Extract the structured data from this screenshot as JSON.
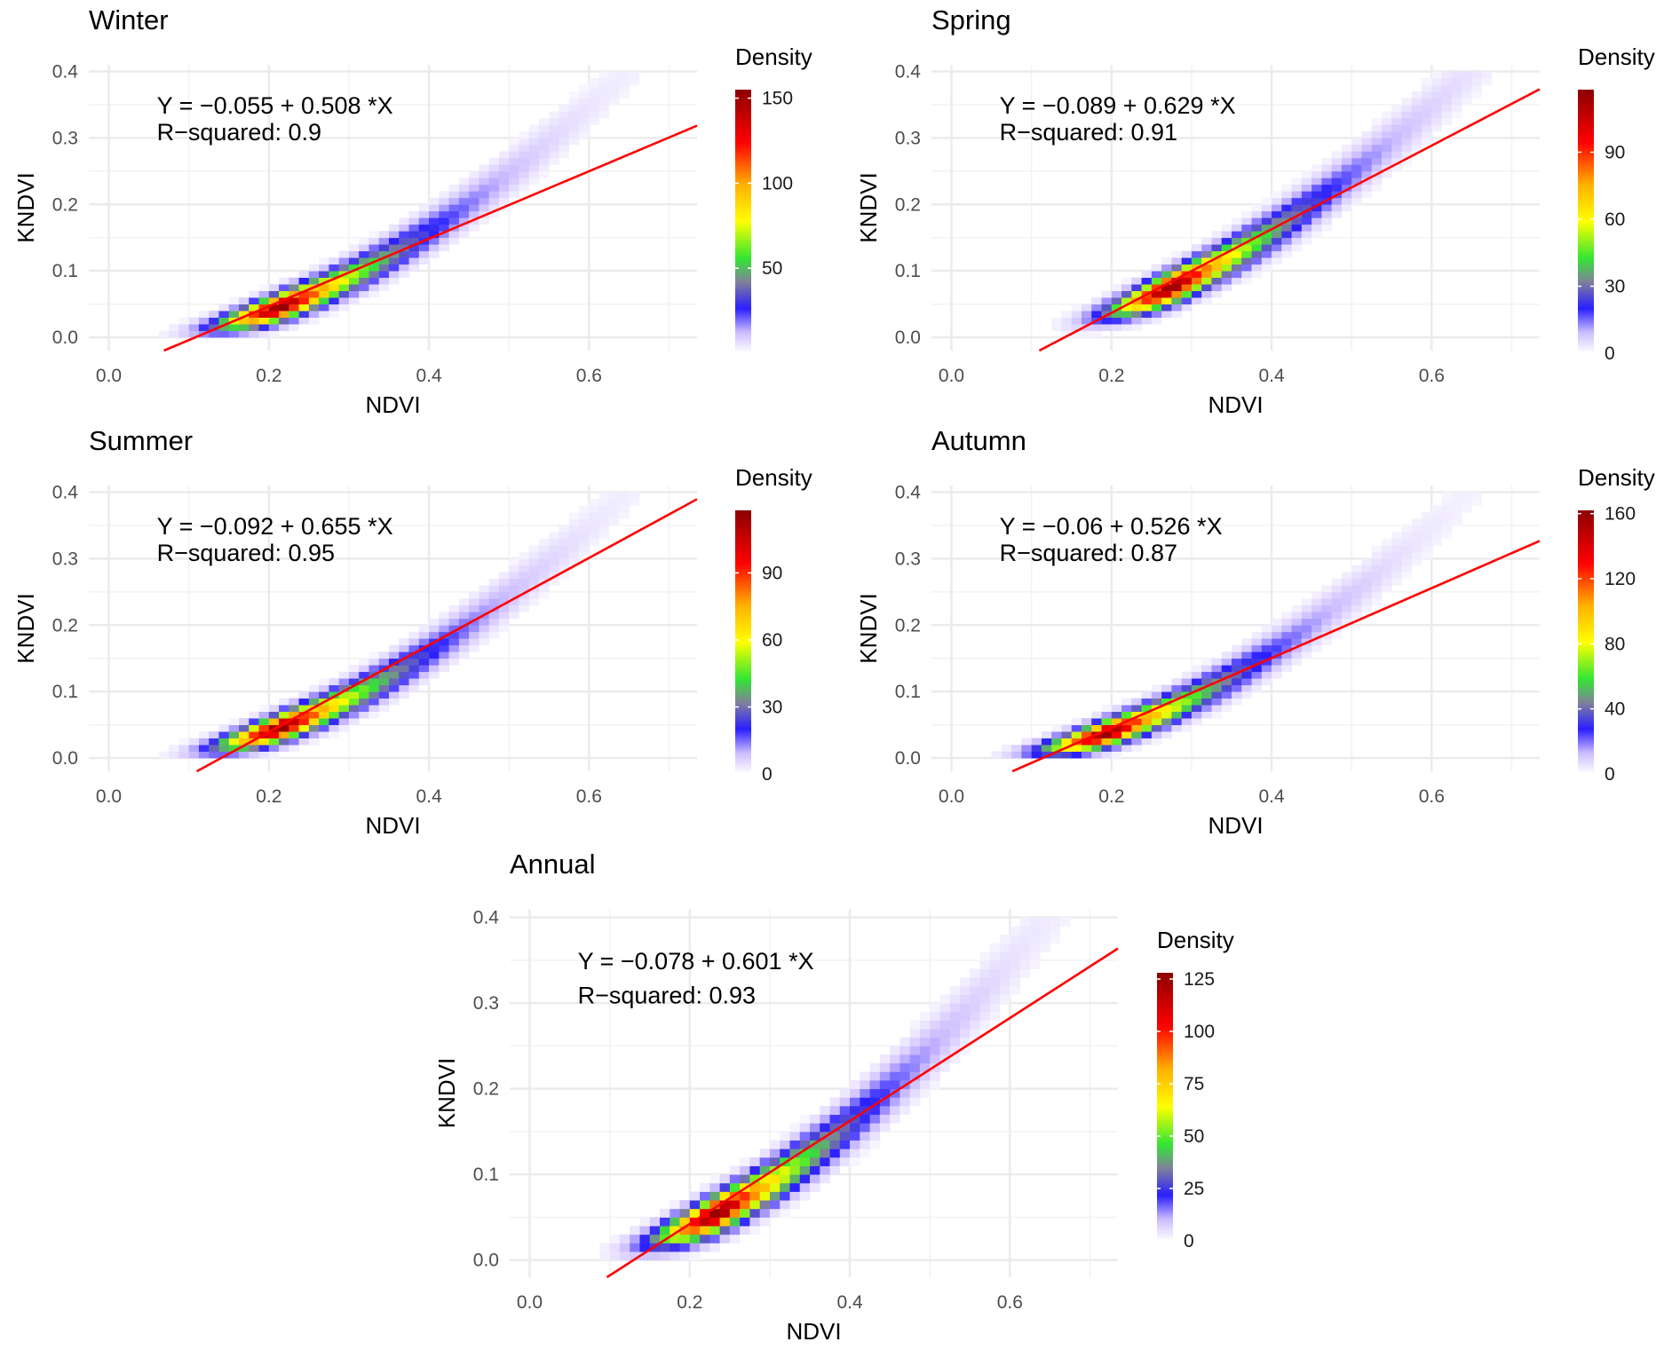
{
  "chart_data": [
    {
      "type": "heatmap",
      "title": "Winter",
      "xlabel": "NDVI",
      "ylabel": "KNDVI",
      "xlim": [
        -0.025,
        0.735
      ],
      "ylim": [
        -0.02,
        0.41
      ],
      "xticks": [
        "0.0",
        "0.2",
        "0.4",
        "0.6"
      ],
      "xtick_values": [
        0,
        0.2,
        0.4,
        0.6
      ],
      "yticks": [
        "0.0",
        "0.1",
        "0.2",
        "0.3",
        "0.4"
      ],
      "ytick_values": [
        0,
        0.1,
        0.2,
        0.3,
        0.4
      ],
      "equation": "Y = −0.055 + 0.508 *X",
      "r_squared_label": "R−squared: 0.9",
      "intercept": -0.055,
      "slope": 0.508,
      "r_squared": 0.9,
      "legend": {
        "title": "Density",
        "ticks": [
          "50",
          "100",
          "150"
        ],
        "tick_values": [
          50,
          100,
          150
        ],
        "min": 0,
        "max": 155
      },
      "density_peak_ndvi": 0.22,
      "max_density": 155
    },
    {
      "type": "heatmap",
      "title": "Spring",
      "xlabel": "NDVI",
      "ylabel": "KNDVI",
      "xlim": [
        -0.025,
        0.735
      ],
      "ylim": [
        -0.02,
        0.41
      ],
      "xticks": [
        "0.0",
        "0.2",
        "0.4",
        "0.6"
      ],
      "xtick_values": [
        0,
        0.2,
        0.4,
        0.6
      ],
      "yticks": [
        "0.0",
        "0.1",
        "0.2",
        "0.3",
        "0.4"
      ],
      "ytick_values": [
        0,
        0.1,
        0.2,
        0.3,
        0.4
      ],
      "equation": "Y = −0.089 + 0.629 *X",
      "r_squared_label": "R−squared: 0.91",
      "intercept": -0.089,
      "slope": 0.629,
      "r_squared": 0.91,
      "legend": {
        "title": "Density",
        "ticks": [
          "0",
          "30",
          "60",
          "90"
        ],
        "tick_values": [
          0,
          30,
          60,
          90
        ],
        "min": 0,
        "max": 118
      },
      "density_peak_ndvi": 0.28,
      "max_density": 118
    },
    {
      "type": "heatmap",
      "title": "Summer",
      "xlabel": "NDVI",
      "ylabel": "KNDVI",
      "xlim": [
        -0.025,
        0.735
      ],
      "ylim": [
        -0.02,
        0.41
      ],
      "xticks": [
        "0.0",
        "0.2",
        "0.4",
        "0.6"
      ],
      "xtick_values": [
        0,
        0.2,
        0.4,
        0.6
      ],
      "yticks": [
        "0.0",
        "0.1",
        "0.2",
        "0.3",
        "0.4"
      ],
      "ytick_values": [
        0,
        0.1,
        0.2,
        0.3,
        0.4
      ],
      "equation": "Y = −0.092 + 0.655 *X",
      "r_squared_label": "R−squared: 0.95",
      "intercept": -0.092,
      "slope": 0.655,
      "r_squared": 0.95,
      "legend": {
        "title": "Density",
        "ticks": [
          "0",
          "30",
          "60",
          "90"
        ],
        "tick_values": [
          0,
          30,
          60,
          90
        ],
        "min": 0,
        "max": 118
      },
      "density_peak_ndvi": 0.22,
      "max_density": 118
    },
    {
      "type": "heatmap",
      "title": "Autumn",
      "xlabel": "NDVI",
      "ylabel": "KNDVI",
      "xlim": [
        -0.025,
        0.735
      ],
      "ylim": [
        -0.02,
        0.41
      ],
      "xticks": [
        "0.0",
        "0.2",
        "0.4",
        "0.6"
      ],
      "xtick_values": [
        0,
        0.2,
        0.4,
        0.6
      ],
      "yticks": [
        "0.0",
        "0.1",
        "0.2",
        "0.3",
        "0.4"
      ],
      "ytick_values": [
        0,
        0.1,
        0.2,
        0.3,
        0.4
      ],
      "equation": "Y = −0.06 + 0.526 *X",
      "r_squared_label": "R−squared: 0.87",
      "intercept": -0.06,
      "slope": 0.526,
      "r_squared": 0.87,
      "legend": {
        "title": "Density",
        "ticks": [
          "0",
          "40",
          "80",
          "120",
          "160"
        ],
        "tick_values": [
          0,
          40,
          80,
          120,
          160
        ],
        "min": 0,
        "max": 162
      },
      "density_peak_ndvi": 0.2,
      "max_density": 162
    },
    {
      "type": "heatmap",
      "title": "Annual",
      "xlabel": "NDVI",
      "ylabel": "KNDVI",
      "xlim": [
        -0.025,
        0.735
      ],
      "ylim": [
        -0.02,
        0.41
      ],
      "xticks": [
        "0.0",
        "0.2",
        "0.4",
        "0.6"
      ],
      "xtick_values": [
        0,
        0.2,
        0.4,
        0.6
      ],
      "yticks": [
        "0.0",
        "0.1",
        "0.2",
        "0.3",
        "0.4"
      ],
      "ytick_values": [
        0,
        0.1,
        0.2,
        0.3,
        0.4
      ],
      "equation": "Y = −0.078 + 0.601 *X",
      "r_squared_label": "R−squared: 0.93",
      "intercept": -0.078,
      "slope": 0.601,
      "r_squared": 0.93,
      "legend": {
        "title": "Density",
        "ticks": [
          "0",
          "25",
          "50",
          "75",
          "100",
          "125"
        ],
        "tick_values": [
          0,
          25,
          50,
          75,
          100,
          125
        ],
        "min": 0,
        "max": 128
      },
      "density_peak_ndvi": 0.24,
      "max_density": 128
    }
  ],
  "colors": {
    "regression_line": "#ff0000",
    "grid": "#ebebeb",
    "density_scale": [
      "#ffffff",
      "#cbbcff",
      "#2a1fff",
      "#80809c",
      "#33e633",
      "#ffff00",
      "#ffb000",
      "#ff0000",
      "#8b0000"
    ]
  }
}
